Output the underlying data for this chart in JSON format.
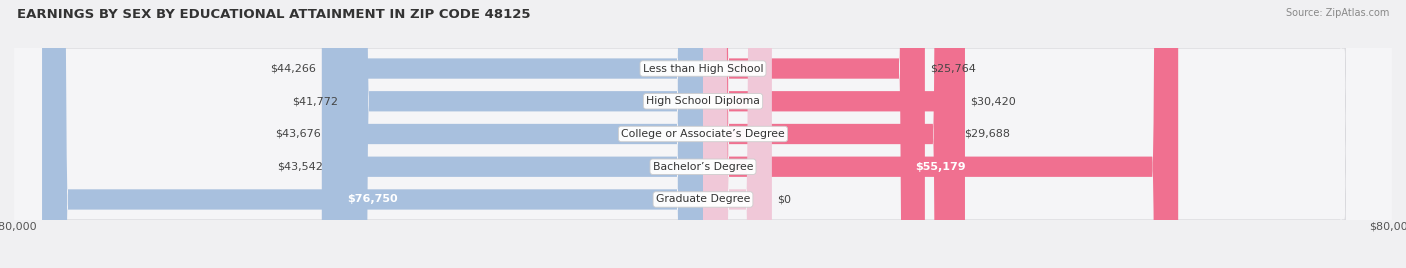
{
  "title": "EARNINGS BY SEX BY EDUCATIONAL ATTAINMENT IN ZIP CODE 48125",
  "source": "Source: ZipAtlas.com",
  "categories": [
    "Less than High School",
    "High School Diploma",
    "College or Associate’s Degree",
    "Bachelor’s Degree",
    "Graduate Degree"
  ],
  "male_values": [
    44266,
    41772,
    43676,
    43542,
    76750
  ],
  "female_values": [
    25764,
    30420,
    29688,
    55179,
    0
  ],
  "female_bar_for_graduate": 8000,
  "male_color": "#a8c0de",
  "male_color_dark": "#6b9acb",
  "female_color": "#f07090",
  "female_color_light": "#f5b8cc",
  "female_color_graduate": "#f0c8d8",
  "axis_max": 80000,
  "title_fontsize": 9.5,
  "source_fontsize": 7,
  "label_fontsize": 8,
  "category_fontsize": 7.8,
  "tick_fontsize": 8,
  "bar_height": 0.62,
  "row_bg_color": "#e8e8ec",
  "row_inner_color": "#f8f8fa"
}
